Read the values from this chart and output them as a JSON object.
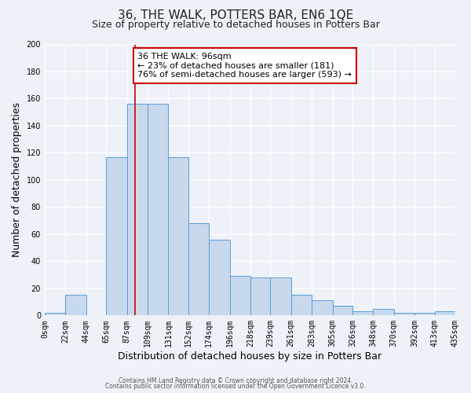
{
  "title": "36, THE WALK, POTTERS BAR, EN6 1QE",
  "subtitle": "Size of property relative to detached houses in Potters Bar",
  "xlabel": "Distribution of detached houses by size in Potters Bar",
  "ylabel": "Number of detached properties",
  "bin_edges": [
    0,
    22,
    44,
    65,
    87,
    109,
    131,
    152,
    174,
    196,
    218,
    239,
    261,
    283,
    305,
    326,
    348,
    370,
    392,
    413,
    435
  ],
  "bin_labels": [
    "0sqm",
    "22sqm",
    "44sqm",
    "65sqm",
    "87sqm",
    "109sqm",
    "131sqm",
    "152sqm",
    "174sqm",
    "196sqm",
    "218sqm",
    "239sqm",
    "261sqm",
    "283sqm",
    "305sqm",
    "326sqm",
    "348sqm",
    "370sqm",
    "392sqm",
    "413sqm",
    "435sqm"
  ],
  "counts": [
    2,
    15,
    0,
    117,
    156,
    156,
    117,
    68,
    56,
    29,
    28,
    28,
    15,
    11,
    7,
    3,
    5,
    2,
    2,
    3
  ],
  "bar_color": "#c8d9ed",
  "bar_edge_color": "#5b9bd5",
  "property_line_x": 96,
  "property_line_color": "#cc0000",
  "annotation_line1": "36 THE WALK: 96sqm",
  "annotation_line2": "← 23% of detached houses are smaller (181)",
  "annotation_line3": "76% of semi-detached houses are larger (593) →",
  "annotation_box_color": "#ffffff",
  "annotation_box_edge": "#cc0000",
  "ylim": [
    0,
    200
  ],
  "yticks": [
    0,
    20,
    40,
    60,
    80,
    100,
    120,
    140,
    160,
    180,
    200
  ],
  "footer1": "Contains HM Land Registry data © Crown copyright and database right 2024.",
  "footer2": "Contains public sector information licensed under the Open Government Licence v3.0.",
  "background_color": "#eef2f8",
  "grid_color": "#ffffff",
  "title_fontsize": 11,
  "subtitle_fontsize": 9,
  "axis_label_fontsize": 9,
  "tick_fontsize": 7,
  "annotation_fontsize": 8,
  "footer_fontsize": 5.5
}
